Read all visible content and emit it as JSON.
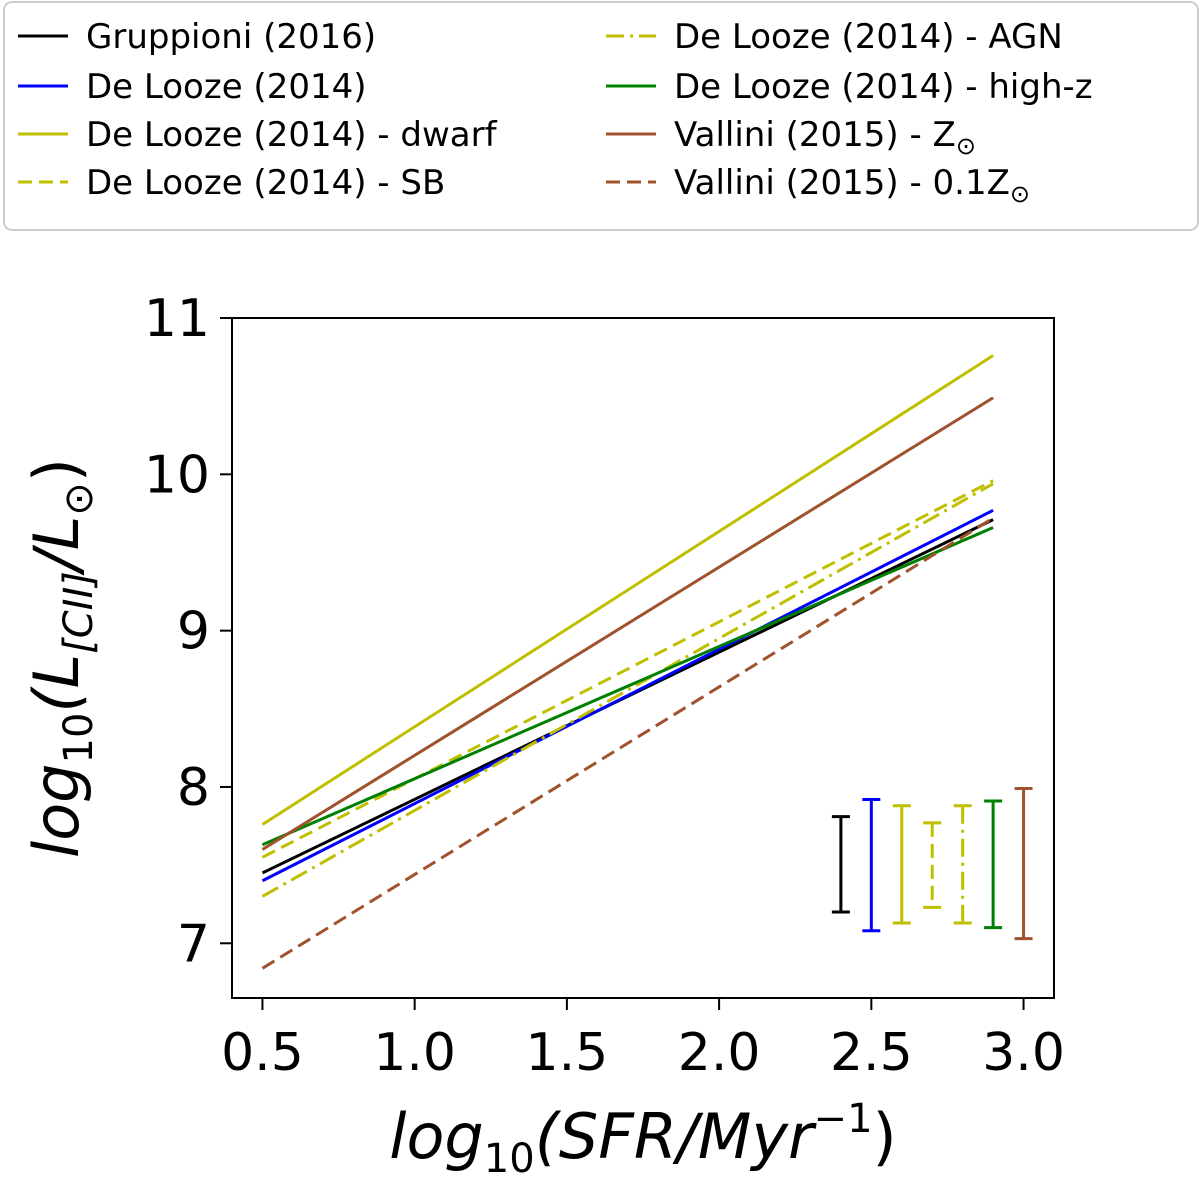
{
  "chart_data": {
    "type": "line",
    "title": "",
    "xlim": [
      0.4,
      3.1
    ],
    "ylim": [
      6.65,
      11.0
    ],
    "xticks": [
      "0.5",
      "1.0",
      "1.5",
      "2.0",
      "2.5",
      "3.0"
    ],
    "yticks": [
      "7",
      "8",
      "9",
      "10",
      "11"
    ],
    "xlabel": {
      "prefix": "log",
      "sub": "10",
      "main": "(SFR/Myr",
      "sup": "−1",
      "suffix": ")"
    },
    "ylabel": {
      "prefix": "log",
      "sub": "10",
      "main": "(L",
      "sub2": "[CII]",
      "mid": "/L",
      "sym": "⊙",
      "suffix": ")"
    },
    "legend_position": "top",
    "series": [
      {
        "name": "Gruppioni (2016)",
        "color": "#000000",
        "dash": "solid",
        "x": [
          0.5,
          2.9
        ],
        "y": [
          7.45,
          9.71
        ],
        "errbar": {
          "x": 2.4,
          "low": 7.2,
          "high": 7.81
        }
      },
      {
        "name": "De Looze (2014)",
        "color": "#0000ff",
        "dash": "solid",
        "x": [
          0.5,
          2.9
        ],
        "y": [
          7.4,
          9.77
        ],
        "errbar": {
          "x": 2.5,
          "low": 7.08,
          "high": 7.92
        }
      },
      {
        "name": "De Looze (2014) - dwarf",
        "color": "#bfbf00",
        "dash": "solid",
        "x": [
          0.5,
          2.9
        ],
        "y": [
          7.76,
          10.76
        ],
        "errbar": {
          "x": 2.6,
          "low": 7.13,
          "high": 7.88
        }
      },
      {
        "name": "De Looze (2014) - SB",
        "color": "#bfbf00",
        "dash": "dashed",
        "x": [
          0.5,
          2.9
        ],
        "y": [
          7.55,
          9.96
        ],
        "errbar": {
          "x": 2.7,
          "low": 7.23,
          "high": 7.77
        }
      },
      {
        "name": "De Looze (2014) - AGN",
        "color": "#bfbf00",
        "dash": "dashdot",
        "x": [
          0.5,
          2.9
        ],
        "y": [
          7.3,
          9.94
        ],
        "errbar": {
          "x": 2.8,
          "low": 7.13,
          "high": 7.88
        }
      },
      {
        "name": "De Looze (2014) - high-z",
        "color": "#008000",
        "dash": "solid",
        "x": [
          0.5,
          2.9
        ],
        "y": [
          7.63,
          9.66
        ],
        "errbar": {
          "x": 2.9,
          "low": 7.1,
          "high": 7.91
        }
      },
      {
        "name": "Vallini (2015) - Z",
        "name_symbol": "⊙",
        "color": "#a0522d",
        "dash": "solid",
        "x": [
          0.5,
          2.9
        ],
        "y": [
          7.6,
          10.49
        ],
        "errbar": {
          "x": 3.0,
          "low": 7.03,
          "high": 7.99
        }
      },
      {
        "name": "Vallini (2015) - 0.1Z",
        "name_symbol": "⊙",
        "color": "#a0522d",
        "dash": "dashed",
        "x": [
          0.5,
          2.9
        ],
        "y": [
          6.84,
          9.72
        ],
        "errbar": null
      }
    ]
  }
}
